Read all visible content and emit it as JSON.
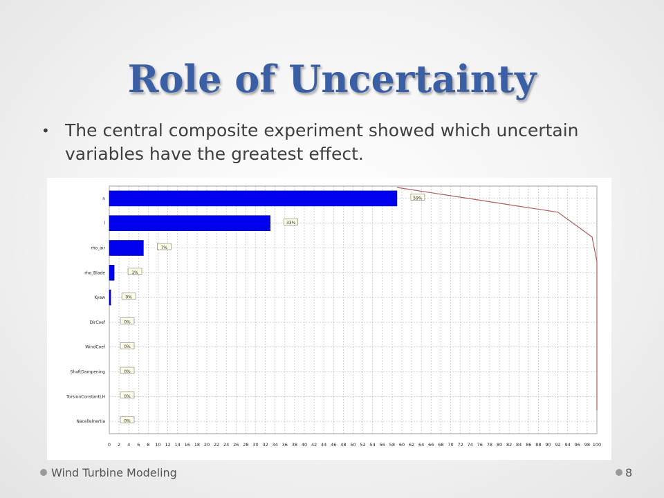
{
  "slide": {
    "title": "Role of Uncertainty",
    "bullet": "The central composite experiment showed which uncertain variables have the greatest effect.",
    "footer_text": "Wind Turbine Modeling",
    "page_number": "8"
  },
  "chart_data": {
    "type": "bar",
    "orientation": "horizontal",
    "title": "",
    "xlabel": "",
    "ylabel": "",
    "xlim": [
      0,
      100
    ],
    "grid": true,
    "x_ticks": [
      "0",
      "2",
      "4",
      "6",
      "8",
      "10",
      "12",
      "14",
      "16",
      "18",
      "20",
      "22",
      "24",
      "26",
      "28",
      "30",
      "32",
      "34",
      "36",
      "38",
      "40",
      "42",
      "44",
      "46",
      "48",
      "50",
      "52",
      "54",
      "56",
      "58",
      "60",
      "62",
      "64",
      "66",
      "68",
      "70",
      "72",
      "74",
      "76",
      "78",
      "80",
      "82",
      "84",
      "86",
      "88",
      "90",
      "92",
      "94",
      "96",
      "98",
      "100"
    ],
    "categories": [
      "n",
      "l",
      "rho_air",
      "rho_Blade",
      "Kyaw",
      "DirCoef",
      "WindCoef",
      "ShaftDampening",
      "TorsionConstantLH",
      "NacelleInertia"
    ],
    "values": [
      59,
      33,
      7,
      1,
      0.3,
      0,
      0,
      0,
      0,
      0
    ],
    "value_labels": [
      "59%",
      "33%",
      "7%",
      "1%",
      "0%",
      "0%",
      "0%",
      "0%",
      "0%",
      "0%"
    ],
    "cumulative": [
      59,
      92,
      99,
      100,
      100,
      100,
      100,
      100,
      100,
      100
    ],
    "colors": {
      "bar": "#0000ee",
      "cumulative_line": "#b05a5a",
      "grid": "#b0b0b0"
    }
  }
}
